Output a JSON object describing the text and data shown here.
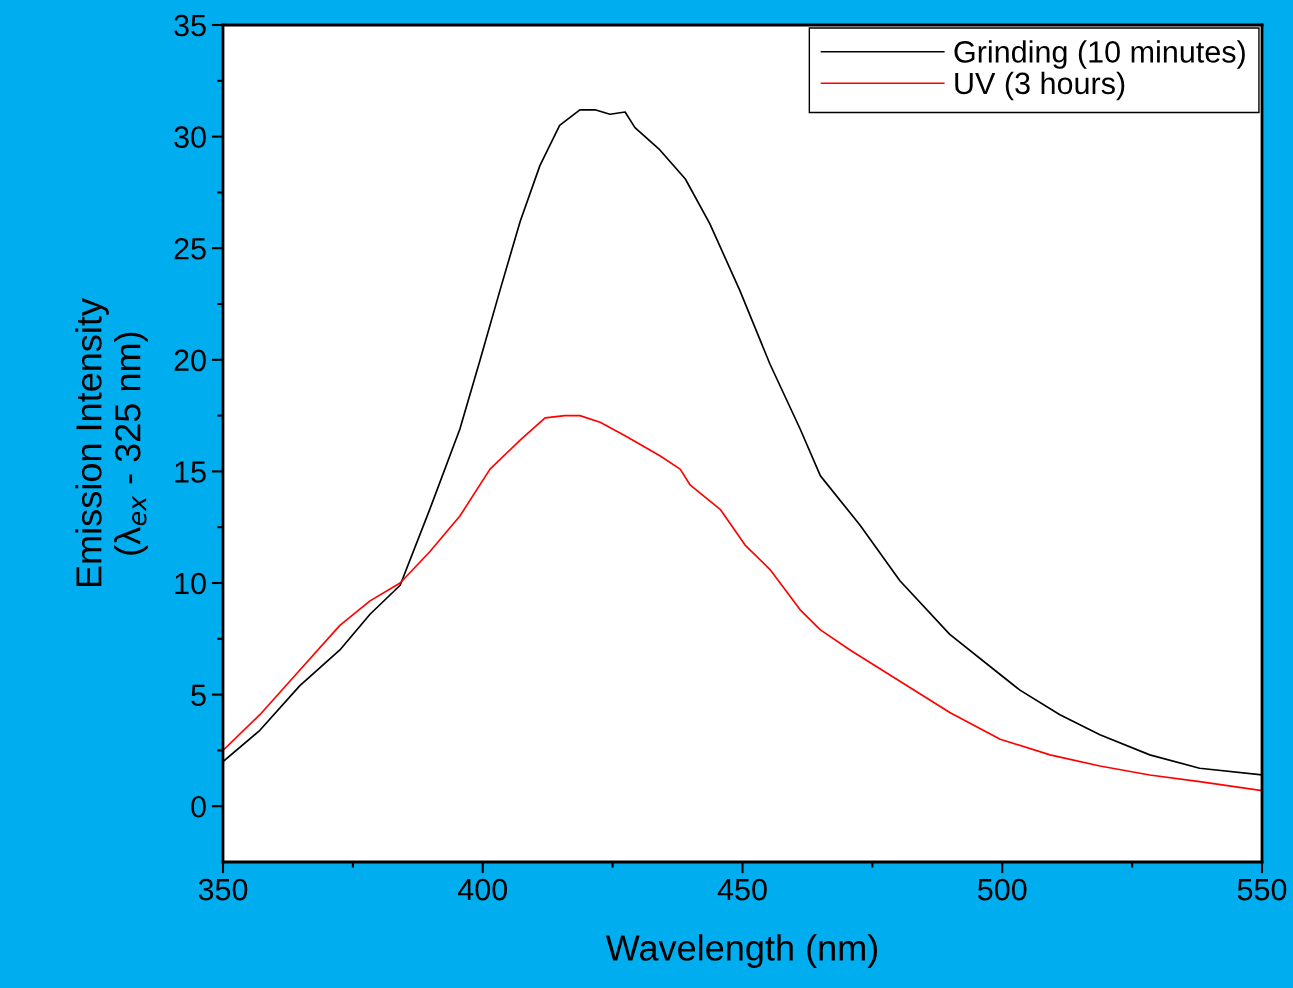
{
  "chart_data": {
    "type": "line",
    "xlabel": "Wavelength (nm)",
    "ylabel": "Emission Intensity\n(λ$_{ex}$ - 325 nm)",
    "xlim": [
      350,
      550
    ],
    "xticks": [
      350,
      400,
      450,
      500,
      550
    ],
    "ylim": [
      -2.5,
      35
    ],
    "yticks": [
      0,
      5,
      10,
      15,
      20,
      25,
      30,
      35
    ],
    "grid": false,
    "legend": "top right",
    "marker": "none",
    "line_style": "solid",
    "series": [
      {
        "name": "Grinding (10 minutes)",
        "color": "#000000",
        "x": [
          350,
          357.1,
          364.8,
          372.5,
          378.3,
          384.1,
          389.8,
          395.6,
          399.5,
          403.3,
          407.2,
          411.0,
          414.8,
          418.7,
          421.6,
          424.5,
          427.4,
          429.3,
          434.1,
          439.0,
          443.7,
          449.5,
          455.3,
          461.1,
          465.0,
          472.6,
          480.3,
          489.9,
          499.6,
          503.4,
          511.1,
          518.8,
          528.4,
          538.0,
          550
        ],
        "values": [
          2.0,
          3.4,
          5.4,
          7.0,
          8.6,
          9.9,
          13.3,
          16.9,
          20.0,
          23.1,
          26.2,
          28.7,
          30.5,
          31.2,
          31.2,
          31.0,
          31.1,
          30.4,
          29.4,
          28.1,
          26.1,
          23.1,
          19.8,
          16.9,
          14.8,
          12.6,
          10.1,
          7.7,
          5.9,
          5.2,
          4.1,
          3.2,
          2.3,
          1.7,
          1.4
        ]
      },
      {
        "name": "UV (3 hours)",
        "color": "#ff0000",
        "x": [
          350,
          357.1,
          364.8,
          372.5,
          378.3,
          384.1,
          389.8,
          395.6,
          401.4,
          407.2,
          412.0,
          415.8,
          418.7,
          422.6,
          427.4,
          434.1,
          438.0,
          439.9,
          445.7,
          450.5,
          455.3,
          461.1,
          465.0,
          470.7,
          480.3,
          489.9,
          499.6,
          509.2,
          518.8,
          528.4,
          538.0,
          550
        ],
        "values": [
          2.5,
          4.1,
          6.1,
          8.1,
          9.2,
          10.0,
          11.4,
          13.0,
          15.1,
          16.4,
          17.4,
          17.5,
          17.5,
          17.2,
          16.6,
          15.7,
          15.1,
          14.4,
          13.3,
          11.7,
          10.6,
          8.8,
          7.9,
          7.0,
          5.6,
          4.2,
          3.0,
          2.3,
          1.8,
          1.4,
          1.1,
          0.7
        ]
      }
    ]
  }
}
